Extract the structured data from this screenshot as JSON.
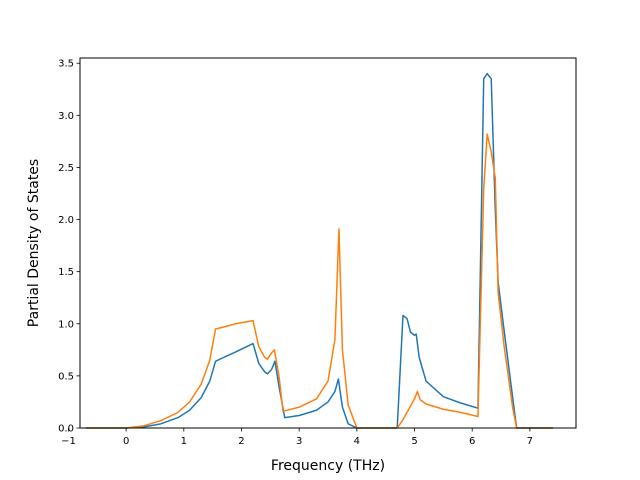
{
  "chart_data": {
    "type": "line",
    "title": "",
    "xlabel": "Frequency (THz)",
    "ylabel": "Partial Density of States",
    "xlim": [
      -0.8,
      7.8
    ],
    "ylim": [
      0.0,
      3.55
    ],
    "xticks": [
      -1,
      0,
      1,
      2,
      3,
      4,
      5,
      6,
      7
    ],
    "xtick_labels": [
      "−1",
      "0",
      "1",
      "2",
      "3",
      "4",
      "5",
      "6",
      "7"
    ],
    "yticks": [
      0.0,
      0.5,
      1.0,
      1.5,
      2.0,
      2.5,
      3.0,
      3.5
    ],
    "ytick_labels": [
      "0.0",
      "0.5",
      "1.0",
      "1.5",
      "2.0",
      "2.5",
      "3.0",
      "3.5"
    ],
    "grid": false,
    "legend": "none",
    "series": [
      {
        "color": "#1f77b4",
        "points": [
          [
            -0.7,
            0.0
          ],
          [
            0.0,
            0.0
          ],
          [
            0.3,
            0.01
          ],
          [
            0.6,
            0.04
          ],
          [
            0.9,
            0.1
          ],
          [
            1.1,
            0.17
          ],
          [
            1.3,
            0.29
          ],
          [
            1.45,
            0.45
          ],
          [
            1.55,
            0.64
          ],
          [
            1.7,
            0.68
          ],
          [
            1.9,
            0.73
          ],
          [
            2.2,
            0.81
          ],
          [
            2.3,
            0.62
          ],
          [
            2.4,
            0.54
          ],
          [
            2.45,
            0.52
          ],
          [
            2.52,
            0.56
          ],
          [
            2.58,
            0.64
          ],
          [
            2.65,
            0.4
          ],
          [
            2.75,
            0.1
          ],
          [
            3.0,
            0.12
          ],
          [
            3.3,
            0.17
          ],
          [
            3.5,
            0.25
          ],
          [
            3.62,
            0.35
          ],
          [
            3.68,
            0.47
          ],
          [
            3.75,
            0.2
          ],
          [
            3.85,
            0.04
          ],
          [
            4.0,
            0.0
          ],
          [
            4.7,
            0.0
          ],
          [
            4.8,
            1.08
          ],
          [
            4.87,
            1.05
          ],
          [
            4.93,
            0.92
          ],
          [
            5.0,
            0.89
          ],
          [
            5.03,
            0.9
          ],
          [
            5.08,
            0.68
          ],
          [
            5.2,
            0.45
          ],
          [
            5.5,
            0.3
          ],
          [
            5.8,
            0.24
          ],
          [
            6.1,
            0.19
          ],
          [
            6.2,
            3.35
          ],
          [
            6.26,
            3.4
          ],
          [
            6.33,
            3.35
          ],
          [
            6.4,
            2.1
          ],
          [
            6.45,
            1.4
          ],
          [
            6.55,
            0.95
          ],
          [
            6.7,
            0.3
          ],
          [
            6.77,
            0.0
          ],
          [
            7.4,
            0.0
          ]
        ]
      },
      {
        "color": "#ff7f0e",
        "points": [
          [
            -0.7,
            0.0
          ],
          [
            0.0,
            0.0
          ],
          [
            0.3,
            0.02
          ],
          [
            0.6,
            0.07
          ],
          [
            0.9,
            0.15
          ],
          [
            1.1,
            0.25
          ],
          [
            1.3,
            0.42
          ],
          [
            1.45,
            0.65
          ],
          [
            1.55,
            0.95
          ],
          [
            1.7,
            0.97
          ],
          [
            1.9,
            1.0
          ],
          [
            2.2,
            1.03
          ],
          [
            2.3,
            0.78
          ],
          [
            2.4,
            0.68
          ],
          [
            2.45,
            0.66
          ],
          [
            2.52,
            0.72
          ],
          [
            2.57,
            0.75
          ],
          [
            2.65,
            0.5
          ],
          [
            2.72,
            0.16
          ],
          [
            3.0,
            0.2
          ],
          [
            3.3,
            0.28
          ],
          [
            3.5,
            0.45
          ],
          [
            3.62,
            0.85
          ],
          [
            3.69,
            1.91
          ],
          [
            3.75,
            0.75
          ],
          [
            3.85,
            0.22
          ],
          [
            4.0,
            0.0
          ],
          [
            4.7,
            0.0
          ],
          [
            4.8,
            0.08
          ],
          [
            4.9,
            0.18
          ],
          [
            5.0,
            0.28
          ],
          [
            5.05,
            0.35
          ],
          [
            5.1,
            0.27
          ],
          [
            5.2,
            0.23
          ],
          [
            5.5,
            0.18
          ],
          [
            5.8,
            0.15
          ],
          [
            6.1,
            0.11
          ],
          [
            6.2,
            2.3
          ],
          [
            6.26,
            2.82
          ],
          [
            6.33,
            2.65
          ],
          [
            6.4,
            2.4
          ],
          [
            6.45,
            1.3
          ],
          [
            6.55,
            0.8
          ],
          [
            6.7,
            0.2
          ],
          [
            6.77,
            0.0
          ],
          [
            7.4,
            0.0
          ]
        ]
      }
    ]
  }
}
